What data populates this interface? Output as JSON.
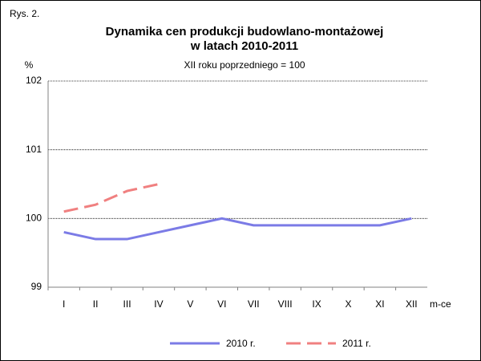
{
  "chart_data": {
    "type": "line",
    "figure_label": "Rys. 2.",
    "title": [
      "Dynamika cen produkcji budowlano-montażowej",
      "w latach 2010-2011"
    ],
    "subtitle": "XII roku poprzedniego = 100",
    "y_label": "%",
    "x_label": "m-ce",
    "categories": [
      "I",
      "II",
      "III",
      "IV",
      "V",
      "VI",
      "VII",
      "VIII",
      "IX",
      "X",
      "XI",
      "XII"
    ],
    "series": [
      {
        "name": "2010 r.",
        "color": "#7b7be6",
        "dashed": false,
        "values": [
          99.8,
          99.7,
          99.7,
          99.8,
          99.9,
          100.0,
          99.9,
          99.9,
          99.9,
          99.9,
          99.9,
          100.0
        ]
      },
      {
        "name": "2011 r.",
        "color": "#f08080",
        "dashed": true,
        "values": [
          100.1,
          100.2,
          100.4,
          100.5,
          null,
          null,
          null,
          null,
          null,
          null,
          null,
          null
        ]
      }
    ],
    "ylim": [
      99,
      102
    ],
    "yticks": [
      99,
      100,
      101,
      102
    ],
    "grid": true,
    "legend": "bottom"
  }
}
